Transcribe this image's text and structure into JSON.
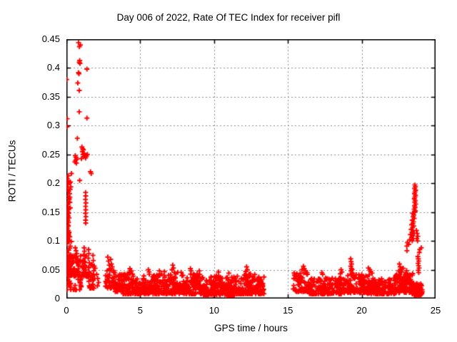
{
  "chart_data": {
    "type": "scatter",
    "title": "Day 006 of 2022, Rate Of TEC Index for receiver pifl",
    "xlabel": "GPS time / hours",
    "ylabel": "ROTI / TECUs",
    "xlim": [
      0,
      25
    ],
    "ylim": [
      0,
      0.45
    ],
    "xticks": [
      0,
      5,
      10,
      15,
      20,
      25
    ],
    "yticks": [
      0,
      0.05,
      0.1,
      0.15,
      0.2,
      0.25,
      0.3,
      0.35,
      0.4,
      0.45
    ],
    "xtick_labels": [
      "0",
      "5",
      "10",
      "15",
      "20",
      "25"
    ],
    "ytick_labels": [
      "0",
      "0.05",
      "0.1",
      "0.15",
      "0.2",
      "0.25",
      "0.3",
      "0.35",
      "0.4",
      "0.45"
    ],
    "grid": {
      "show": true,
      "color": "#8c8c8c",
      "dash": [
        2,
        3
      ]
    },
    "axis_color": "#000000",
    "background": "#ffffff",
    "legend": null,
    "marker": {
      "shape": "plus",
      "color": "#ff0000",
      "size": 7,
      "stroke": 1.9
    },
    "series": [
      {
        "name": "ROTI",
        "points": [
          [
            0.02,
            0.38
          ],
          [
            0.05,
            0.312
          ],
          [
            0.04,
            0.298
          ],
          [
            0.34,
            0.217
          ],
          [
            0.12,
            0.213
          ],
          [
            0.06,
            0.208
          ],
          [
            0.02,
            0.202
          ],
          [
            0.1,
            0.198
          ],
          [
            0.04,
            0.193
          ],
          [
            0.08,
            0.19
          ],
          [
            0.15,
            0.186
          ],
          [
            0.22,
            0.182
          ],
          [
            0.1,
            0.178
          ],
          [
            0.2,
            0.172
          ],
          [
            0.15,
            0.168
          ],
          [
            0.06,
            0.163
          ],
          [
            0.11,
            0.159
          ],
          [
            0.05,
            0.152
          ],
          [
            0.1,
            0.15
          ],
          [
            0.15,
            0.148
          ],
          [
            0.08,
            0.145
          ],
          [
            0.12,
            0.143
          ],
          [
            0.18,
            0.14
          ],
          [
            0.06,
            0.138
          ],
          [
            0.1,
            0.135
          ],
          [
            0.14,
            0.132
          ],
          [
            0.08,
            0.128
          ],
          [
            0.05,
            0.122
          ],
          [
            0.12,
            0.118
          ],
          [
            0.18,
            0.115
          ],
          [
            0.08,
            0.112
          ],
          [
            0.15,
            0.108
          ],
          [
            0.04,
            0.105
          ],
          [
            0.1,
            0.102
          ],
          [
            0.2,
            0.1
          ],
          [
            0.82,
            0.444
          ],
          [
            0.95,
            0.44
          ],
          [
            0.88,
            0.437
          ],
          [
            0.9,
            0.413
          ],
          [
            0.87,
            0.41
          ],
          [
            0.92,
            0.408
          ],
          [
            1.39,
            0.398
          ],
          [
            0.82,
            0.392
          ],
          [
            0.85,
            0.39
          ],
          [
            0.77,
            0.374
          ],
          [
            0.87,
            0.361
          ],
          [
            0.87,
            0.324
          ],
          [
            1.39,
            0.313
          ],
          [
            0.74,
            0.278
          ],
          [
            0.6,
            0.248
          ],
          [
            0.65,
            0.245
          ],
          [
            0.7,
            0.242
          ],
          [
            0.62,
            0.24
          ],
          [
            0.58,
            0.237
          ],
          [
            0.68,
            0.235
          ],
          [
            1.05,
            0.263
          ],
          [
            1.1,
            0.26
          ],
          [
            1.15,
            0.258
          ],
          [
            1.08,
            0.255
          ],
          [
            1.2,
            0.252
          ],
          [
            1.12,
            0.25
          ],
          [
            1.25,
            0.248
          ],
          [
            1.18,
            0.246
          ],
          [
            1.3,
            0.244
          ],
          [
            1.42,
            0.25
          ],
          [
            1.35,
            0.247
          ],
          [
            1.02,
            0.243
          ],
          [
            1.63,
            0.22
          ],
          [
            1.68,
            0.217
          ],
          [
            0.9,
            0.205
          ],
          [
            1.3,
            0.184
          ],
          [
            1.31,
            0.178
          ],
          [
            1.29,
            0.172
          ],
          [
            1.32,
            0.166
          ],
          [
            1.3,
            0.16
          ],
          [
            1.31,
            0.154
          ],
          [
            1.29,
            0.148
          ],
          [
            1.32,
            0.142
          ],
          [
            1.3,
            0.136
          ],
          [
            1.31,
            0.131
          ],
          [
            1.2,
            0.088
          ],
          [
            1.22,
            0.082
          ],
          [
            1.18,
            0.076
          ],
          [
            1.25,
            0.07
          ],
          [
            1.21,
            0.064
          ],
          [
            1.24,
            0.058
          ],
          [
            1.19,
            0.052
          ],
          [
            0.6,
            0.088
          ],
          [
            0.65,
            0.083
          ],
          [
            0.7,
            0.078
          ],
          [
            0.62,
            0.073
          ],
          [
            1.5,
            0.085
          ],
          [
            1.52,
            0.078
          ],
          [
            1.48,
            0.07
          ],
          [
            1.55,
            0.062
          ],
          [
            1.5,
            0.054
          ],
          [
            1.53,
            0.046
          ],
          [
            1.49,
            0.038
          ],
          [
            1.52,
            0.03
          ],
          [
            1.55,
            0.022
          ],
          [
            1.8,
            0.075
          ],
          [
            1.82,
            0.066
          ],
          [
            1.78,
            0.057
          ],
          [
            1.85,
            0.048
          ],
          [
            1.8,
            0.04
          ],
          [
            1.83,
            0.032
          ],
          [
            1.79,
            0.024
          ],
          [
            1.86,
            0.018
          ],
          [
            2.05,
            0.042
          ],
          [
            2.12,
            0.035
          ],
          [
            2.18,
            0.028
          ],
          [
            2.1,
            0.022
          ],
          [
            2.8,
            0.072
          ],
          [
            2.85,
            0.065
          ],
          [
            2.9,
            0.058
          ],
          [
            3.0,
            0.068
          ],
          [
            3.05,
            0.06
          ],
          [
            2.95,
            0.052
          ],
          [
            3.1,
            0.055
          ],
          [
            2.75,
            0.048
          ],
          [
            2.65,
            0.04
          ],
          [
            3.2,
            0.045
          ],
          [
            4.3,
            0.052
          ],
          [
            4.4,
            0.048
          ],
          [
            4.25,
            0.046
          ],
          [
            5.55,
            0.05
          ],
          [
            5.6,
            0.046
          ],
          [
            6.3,
            0.048
          ],
          [
            7.2,
            0.058
          ],
          [
            7.25,
            0.053
          ],
          [
            7.15,
            0.05
          ],
          [
            8.4,
            0.052
          ],
          [
            8.45,
            0.048
          ],
          [
            9.0,
            0.048
          ],
          [
            10.3,
            0.046
          ],
          [
            11.0,
            0.044
          ],
          [
            12.2,
            0.055
          ],
          [
            12.25,
            0.05
          ],
          [
            12.15,
            0.047
          ],
          [
            15.95,
            0.05
          ],
          [
            16.05,
            0.056
          ],
          [
            16.1,
            0.052
          ],
          [
            16.2,
            0.048
          ],
          [
            16.3,
            0.045
          ],
          [
            17.3,
            0.045
          ],
          [
            17.35,
            0.042
          ],
          [
            18.55,
            0.043
          ],
          [
            18.6,
            0.05
          ],
          [
            18.65,
            0.046
          ],
          [
            19.25,
            0.069
          ],
          [
            19.28,
            0.064
          ],
          [
            19.31,
            0.06
          ],
          [
            19.26,
            0.056
          ],
          [
            19.3,
            0.052
          ],
          [
            19.27,
            0.048
          ],
          [
            19.33,
            0.045
          ],
          [
            19.29,
            0.042
          ],
          [
            19.35,
            0.05
          ],
          [
            19.38,
            0.044
          ],
          [
            20.45,
            0.053
          ],
          [
            20.55,
            0.05
          ],
          [
            20.6,
            0.047
          ],
          [
            20.7,
            0.044
          ],
          [
            20.5,
            0.041
          ],
          [
            22.5,
            0.048
          ],
          [
            22.55,
            0.06
          ],
          [
            22.6,
            0.055
          ],
          [
            22.65,
            0.051
          ],
          [
            22.7,
            0.046
          ],
          [
            23.6,
            0.197
          ],
          [
            23.63,
            0.194
          ],
          [
            23.58,
            0.191
          ],
          [
            23.65,
            0.188
          ],
          [
            23.61,
            0.185
          ],
          [
            23.57,
            0.182
          ],
          [
            23.64,
            0.179
          ],
          [
            23.6,
            0.176
          ],
          [
            23.56,
            0.173
          ],
          [
            23.62,
            0.17
          ],
          [
            23.59,
            0.167
          ],
          [
            23.65,
            0.164
          ],
          [
            23.58,
            0.161
          ],
          [
            23.61,
            0.158
          ],
          [
            23.55,
            0.155
          ],
          [
            23.63,
            0.152
          ],
          [
            23.59,
            0.15
          ],
          [
            23.45,
            0.148
          ],
          [
            23.52,
            0.145
          ],
          [
            23.48,
            0.142
          ],
          [
            23.55,
            0.139
          ],
          [
            23.42,
            0.136
          ],
          [
            23.5,
            0.133
          ],
          [
            23.46,
            0.13
          ],
          [
            23.38,
            0.128
          ],
          [
            23.52,
            0.126
          ],
          [
            23.44,
            0.123
          ],
          [
            23.35,
            0.12
          ],
          [
            23.48,
            0.118
          ],
          [
            23.4,
            0.115
          ],
          [
            23.55,
            0.113
          ],
          [
            23.3,
            0.111
          ],
          [
            23.45,
            0.109
          ],
          [
            23.37,
            0.106
          ],
          [
            23.5,
            0.104
          ],
          [
            23.25,
            0.102
          ],
          [
            23.42,
            0.1
          ],
          [
            23.7,
            0.118
          ],
          [
            23.75,
            0.113
          ],
          [
            23.8,
            0.108
          ],
          [
            23.72,
            0.104
          ],
          [
            23.78,
            0.1
          ],
          [
            23.1,
            0.097
          ],
          [
            23.18,
            0.094
          ],
          [
            23.05,
            0.091
          ],
          [
            24.03,
            0.088
          ],
          [
            23.93,
            0.085
          ],
          [
            23.06,
            0.083
          ],
          [
            23.9,
            0.08
          ],
          [
            23.8,
            0.073
          ],
          [
            23.83,
            0.069
          ],
          [
            23.86,
            0.065
          ],
          [
            23.81,
            0.061
          ],
          [
            23.85,
            0.057
          ],
          [
            23.88,
            0.053
          ],
          [
            23.82,
            0.049
          ],
          [
            23.86,
            0.045
          ]
        ],
        "dense_bands": [
          {
            "x0": 0.0,
            "x1": 0.35,
            "y0": 0.04,
            "y1": 0.1,
            "n": 60
          },
          {
            "x0": 0.0,
            "x1": 0.3,
            "y0": 0.015,
            "y1": 0.04,
            "n": 12
          },
          {
            "x0": 0.05,
            "x1": 0.3,
            "y0": 0.155,
            "y1": 0.205,
            "n": 14
          },
          {
            "x0": 0.0,
            "x1": 0.25,
            "y0": 0.1,
            "y1": 0.13,
            "n": 16
          },
          {
            "x0": 0.35,
            "x1": 1.45,
            "y0": 0.038,
            "y1": 0.078,
            "n": 70
          },
          {
            "x0": 0.45,
            "x1": 1.05,
            "y0": 0.015,
            "y1": 0.035,
            "n": 15
          },
          {
            "x0": 1.45,
            "x1": 2.0,
            "y0": 0.018,
            "y1": 0.06,
            "n": 25
          },
          {
            "x0": 2.6,
            "x1": 3.3,
            "y0": 0.018,
            "y1": 0.05,
            "n": 40
          },
          {
            "x0": 3.3,
            "x1": 3.8,
            "y0": 0.012,
            "y1": 0.042,
            "n": 40
          },
          {
            "x0": 3.8,
            "x1": 4.6,
            "y0": 0.008,
            "y1": 0.045,
            "n": 70
          },
          {
            "x0": 4.6,
            "x1": 5.5,
            "y0": 0.008,
            "y1": 0.04,
            "n": 75
          },
          {
            "x0": 5.5,
            "x1": 6.5,
            "y0": 0.008,
            "y1": 0.044,
            "n": 85
          },
          {
            "x0": 6.5,
            "x1": 7.8,
            "y0": 0.008,
            "y1": 0.048,
            "n": 110
          },
          {
            "x0": 7.8,
            "x1": 9.2,
            "y0": 0.008,
            "y1": 0.044,
            "n": 115
          },
          {
            "x0": 9.2,
            "x1": 10.5,
            "y0": 0.006,
            "y1": 0.04,
            "n": 105
          },
          {
            "x0": 10.5,
            "x1": 11.5,
            "y0": 0.005,
            "y1": 0.038,
            "n": 85
          },
          {
            "x0": 11.5,
            "x1": 12.8,
            "y0": 0.008,
            "y1": 0.044,
            "n": 105
          },
          {
            "x0": 12.8,
            "x1": 13.4,
            "y0": 0.008,
            "y1": 0.038,
            "n": 50
          },
          {
            "x0": 15.35,
            "x1": 16.4,
            "y0": 0.012,
            "y1": 0.048,
            "n": 70
          },
          {
            "x0": 16.4,
            "x1": 19.0,
            "y0": 0.008,
            "y1": 0.036,
            "n": 190
          },
          {
            "x0": 19.0,
            "x1": 20.4,
            "y0": 0.01,
            "y1": 0.042,
            "n": 110
          },
          {
            "x0": 20.4,
            "x1": 22.3,
            "y0": 0.008,
            "y1": 0.036,
            "n": 145
          },
          {
            "x0": 22.3,
            "x1": 23.5,
            "y0": 0.01,
            "y1": 0.044,
            "n": 95
          },
          {
            "x0": 22.6,
            "x1": 23.3,
            "y0": 0.03,
            "y1": 0.055,
            "n": 25
          },
          {
            "x0": 23.4,
            "x1": 24.1,
            "y0": 0.006,
            "y1": 0.028,
            "n": 70
          }
        ]
      }
    ]
  }
}
